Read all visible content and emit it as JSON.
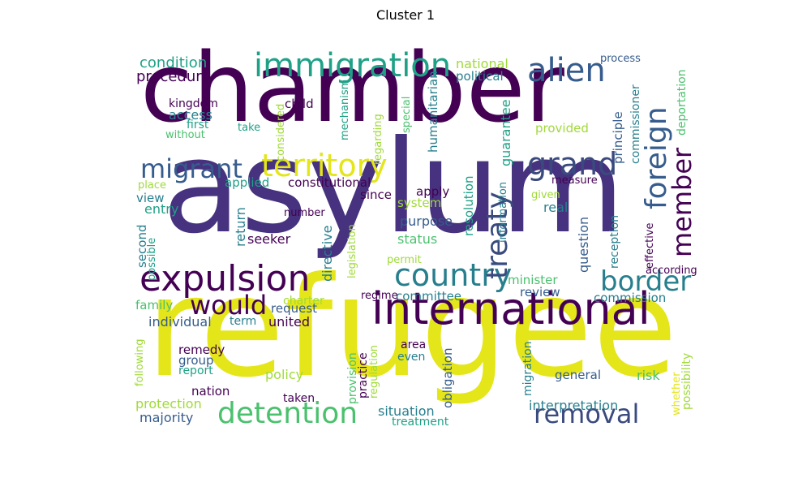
{
  "title": "Cluster 1",
  "palette": [
    "#440154",
    "#46327e",
    "#365c8d",
    "#277f8e",
    "#1fa187",
    "#4ac16d",
    "#a0da39",
    "#e4e61a"
  ],
  "words": [
    {
      "text": "chamber",
      "color": "#440154"
    },
    {
      "text": "asylum",
      "color": "#46327e"
    },
    {
      "text": "refugee",
      "color": "#e4e61a"
    },
    {
      "text": "international",
      "color": "#440154"
    },
    {
      "text": "expulsion",
      "color": "#440154"
    },
    {
      "text": "immigration",
      "color": "#1fa187"
    },
    {
      "text": "alien",
      "color": "#365c8d"
    },
    {
      "text": "foreign",
      "color": "#365c8d"
    },
    {
      "text": "grand",
      "color": "#3a4a7e"
    },
    {
      "text": "territory",
      "color": "#e4e61a"
    },
    {
      "text": "migrant",
      "color": "#365c8d"
    },
    {
      "text": "country",
      "color": "#277f8e"
    },
    {
      "text": "treaty",
      "color": "#3a4a7e"
    },
    {
      "text": "member",
      "color": "#440154"
    },
    {
      "text": "border",
      "color": "#277f8e"
    },
    {
      "text": "would",
      "color": "#440154"
    },
    {
      "text": "detention",
      "color": "#4ac16d"
    },
    {
      "text": "removal",
      "color": "#3a4a7e"
    },
    {
      "text": "condition",
      "color": "#1fa187"
    },
    {
      "text": "procedure",
      "color": "#440154"
    },
    {
      "text": "kingdom",
      "color": "#440154"
    },
    {
      "text": "access",
      "color": "#277f8e"
    },
    {
      "text": "first",
      "color": "#1fa187"
    },
    {
      "text": "without",
      "color": "#4ac16d"
    },
    {
      "text": "child",
      "color": "#440154"
    },
    {
      "text": "considered",
      "color": "#a0da39"
    },
    {
      "text": "take",
      "color": "#1fa187"
    },
    {
      "text": "mechanism",
      "color": "#1fa187"
    },
    {
      "text": "regarding",
      "color": "#a0da39"
    },
    {
      "text": "special",
      "color": "#4ac16d"
    },
    {
      "text": "humanitarian",
      "color": "#277f8e"
    },
    {
      "text": "guarantee",
      "color": "#1fa187"
    },
    {
      "text": "national",
      "color": "#a0da39"
    },
    {
      "text": "political",
      "color": "#277f8e"
    },
    {
      "text": "process",
      "color": "#365c8d"
    },
    {
      "text": "provided",
      "color": "#a0da39"
    },
    {
      "text": "principle",
      "color": "#365c8d"
    },
    {
      "text": "commissioner",
      "color": "#277f8e"
    },
    {
      "text": "deportation",
      "color": "#4ac16d"
    },
    {
      "text": "place",
      "color": "#a0da39"
    },
    {
      "text": "applied",
      "color": "#1fa187"
    },
    {
      "text": "constitutional",
      "color": "#440154"
    },
    {
      "text": "since",
      "color": "#440154"
    },
    {
      "text": "apply",
      "color": "#440154"
    },
    {
      "text": "system",
      "color": "#a0da39"
    },
    {
      "text": "resolution",
      "color": "#1fa187"
    },
    {
      "text": "information",
      "color": "#277f8e"
    },
    {
      "text": "measure",
      "color": "#440154"
    },
    {
      "text": "given",
      "color": "#a0da39"
    },
    {
      "text": "real",
      "color": "#277f8e"
    },
    {
      "text": "view",
      "color": "#277f8e"
    },
    {
      "text": "entry",
      "color": "#1fa187"
    },
    {
      "text": "return",
      "color": "#277f8e"
    },
    {
      "text": "number",
      "color": "#440154"
    },
    {
      "text": "directive",
      "color": "#277f8e"
    },
    {
      "text": "purpose",
      "color": "#365c8d"
    },
    {
      "text": "question",
      "color": "#365c8d"
    },
    {
      "text": "reception",
      "color": "#277f8e"
    },
    {
      "text": "effective",
      "color": "#440154"
    },
    {
      "text": "second",
      "color": "#277f8e"
    },
    {
      "text": "possible",
      "color": "#1fa187"
    },
    {
      "text": "seeker",
      "color": "#440154"
    },
    {
      "text": "legislation",
      "color": "#a0da39"
    },
    {
      "text": "status",
      "color": "#4ac16d"
    },
    {
      "text": "permit",
      "color": "#a0da39"
    },
    {
      "text": "according",
      "color": "#440154"
    },
    {
      "text": "minister",
      "color": "#4ac16d"
    },
    {
      "text": "committee",
      "color": "#277f8e"
    },
    {
      "text": "regime",
      "color": "#440154"
    },
    {
      "text": "review",
      "color": "#365c8d"
    },
    {
      "text": "commission",
      "color": "#277f8e"
    },
    {
      "text": "family",
      "color": "#4ac16d"
    },
    {
      "text": "charter",
      "color": "#a0da39"
    },
    {
      "text": "request",
      "color": "#365c8d"
    },
    {
      "text": "individual",
      "color": "#365c8d"
    },
    {
      "text": "term",
      "color": "#277f8e"
    },
    {
      "text": "united",
      "color": "#440154"
    },
    {
      "text": "following",
      "color": "#a0da39"
    },
    {
      "text": "remedy",
      "color": "#440154"
    },
    {
      "text": "group",
      "color": "#365c8d"
    },
    {
      "text": "report",
      "color": "#1fa187"
    },
    {
      "text": "provision",
      "color": "#4ac16d"
    },
    {
      "text": "regulation",
      "color": "#a0da39"
    },
    {
      "text": "practice",
      "color": "#440154"
    },
    {
      "text": "area",
      "color": "#440154"
    },
    {
      "text": "even",
      "color": "#277f8e"
    },
    {
      "text": "obligation",
      "color": "#365c8d"
    },
    {
      "text": "migration",
      "color": "#277f8e"
    },
    {
      "text": "general",
      "color": "#365c8d"
    },
    {
      "text": "risk",
      "color": "#4ac16d"
    },
    {
      "text": "whether",
      "color": "#e4e61a"
    },
    {
      "text": "possibility",
      "color": "#a0da39"
    },
    {
      "text": "policy",
      "color": "#a0da39"
    },
    {
      "text": "nation",
      "color": "#440154"
    },
    {
      "text": "protection",
      "color": "#a0da39"
    },
    {
      "text": "majority",
      "color": "#365c8d"
    },
    {
      "text": "taken",
      "color": "#440154"
    },
    {
      "text": "situation",
      "color": "#277f8e"
    },
    {
      "text": "treatment",
      "color": "#1fa187"
    },
    {
      "text": "interpretation",
      "color": "#277f8e"
    }
  ]
}
